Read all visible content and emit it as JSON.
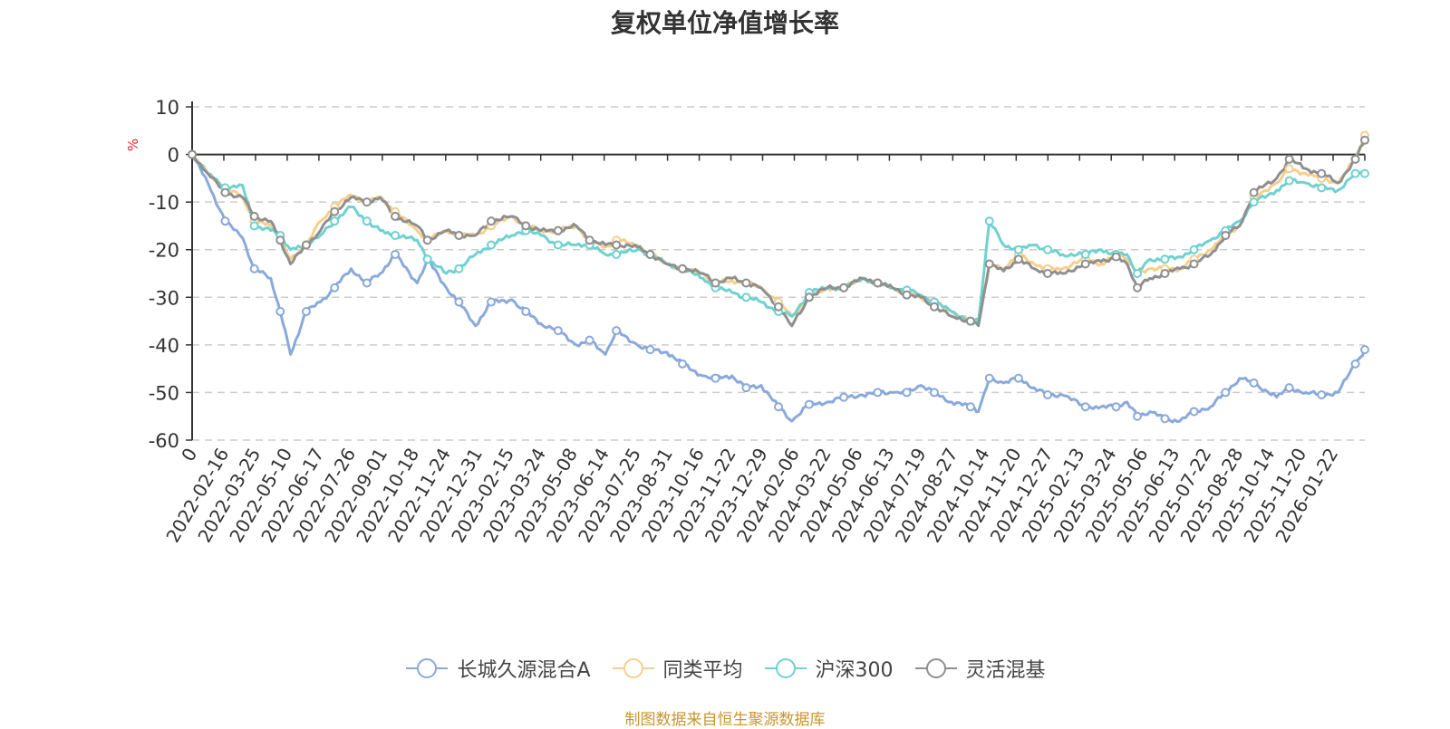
{
  "chart_data": {
    "type": "line",
    "title": "复权单位净值增长率",
    "ylabel": "%",
    "xlabel": "",
    "ylim": [
      -60,
      10
    ],
    "yticks": [
      10,
      0,
      -10,
      -20,
      -30,
      -40,
      -50,
      -60
    ],
    "grid": true,
    "legend_position": "bottom",
    "x_start_label": "0",
    "x_tick_labels": [
      "2022-02-16",
      "2022-03-25",
      "2022-05-10",
      "2022-06-17",
      "2022-07-26",
      "2022-09-01",
      "2022-10-18",
      "2022-11-24",
      "2022-12-31",
      "2023-02-15",
      "2023-03-24",
      "2023-05-08",
      "2023-06-14",
      "2023-07-25",
      "2023-08-31",
      "2023-10-16",
      "2023-11-22",
      "2023-12-29",
      "2024-02-06",
      "2024-03-22",
      "2024-05-06",
      "2024-06-13",
      "2024-07-19",
      "2024-08-27",
      "2024-10-14",
      "2024-11-20",
      "2024-12-27",
      "2025-02-13",
      "2025-03-24",
      "2025-05-06",
      "2025-06-13",
      "2025-07-22",
      "2025-08-28",
      "2025-10-14",
      "2025-11-20",
      "2026-01-22"
    ],
    "x": [
      "2022-01-05",
      "2022-01-25",
      "2022-02-16",
      "2022-03-10",
      "2022-03-25",
      "2022-04-15",
      "2022-04-27",
      "2022-05-10",
      "2022-05-30",
      "2022-06-17",
      "2022-07-05",
      "2022-07-26",
      "2022-08-15",
      "2022-09-01",
      "2022-09-20",
      "2022-10-18",
      "2022-10-31",
      "2022-11-24",
      "2022-12-10",
      "2022-12-31",
      "2023-01-20",
      "2023-02-15",
      "2023-03-05",
      "2023-03-24",
      "2023-04-15",
      "2023-05-08",
      "2023-05-25",
      "2023-06-14",
      "2023-06-28",
      "2023-07-25",
      "2023-08-10",
      "2023-08-31",
      "2023-09-20",
      "2023-10-16",
      "2023-11-01",
      "2023-11-22",
      "2023-12-10",
      "2023-12-29",
      "2024-01-20",
      "2024-02-06",
      "2024-02-28",
      "2024-03-22",
      "2024-04-12",
      "2024-05-06",
      "2024-05-25",
      "2024-06-13",
      "2024-07-01",
      "2024-07-19",
      "2024-08-05",
      "2024-08-27",
      "2024-09-20",
      "2024-09-30",
      "2024-10-14",
      "2024-11-01",
      "2024-11-20",
      "2024-12-10",
      "2024-12-27",
      "2025-01-15",
      "2025-02-13",
      "2025-03-05",
      "2025-03-24",
      "2025-04-07",
      "2025-04-20",
      "2025-05-06",
      "2025-05-25",
      "2025-06-13",
      "2025-07-01",
      "2025-07-22",
      "2025-08-10",
      "2025-08-28",
      "2025-09-15",
      "2025-10-14",
      "2025-10-30",
      "2025-11-20",
      "2025-12-10",
      "2025-12-31",
      "2026-01-22",
      "2026-02-03"
    ],
    "series": [
      {
        "name": "长城久源混合A",
        "color": "#8aa9db",
        "values": [
          0,
          -6,
          -14,
          -17.5,
          -24,
          -26,
          -33,
          -42,
          -33,
          -31,
          -28,
          -24,
          -27,
          -25,
          -21,
          -27,
          -22,
          -28,
          -31,
          -36,
          -31,
          -30.5,
          -33,
          -35.5,
          -37,
          -40,
          -39,
          -42,
          -37,
          -40,
          -41,
          -41.5,
          -44,
          -46.5,
          -47,
          -46.5,
          -49,
          -48.5,
          -53,
          -56,
          -52.5,
          -52,
          -51,
          -50.5,
          -50,
          -50,
          -50,
          -48.5,
          -50,
          -52,
          -53,
          -54,
          -47,
          -48,
          -47,
          -49,
          -50.5,
          -50.5,
          -53,
          -53,
          -53,
          -52,
          -55,
          -54,
          -55.5,
          -56,
          -54,
          -53,
          -50,
          -47,
          -48,
          -51,
          -49,
          -50,
          -50.5,
          -50,
          -44,
          -41
        ]
      },
      {
        "name": "同类平均",
        "color": "#f5cf8d",
        "values": [
          0,
          -4,
          -7,
          -9,
          -14,
          -15,
          -18,
          -22,
          -19,
          -14,
          -11,
          -8.5,
          -10,
          -9,
          -12,
          -16,
          -18,
          -16,
          -17,
          -17,
          -15,
          -13,
          -15,
          -16,
          -16,
          -15,
          -18,
          -19.5,
          -18,
          -19,
          -21,
          -23,
          -24,
          -25,
          -27,
          -26.5,
          -27,
          -28,
          -31,
          -34,
          -30,
          -28,
          -28,
          -26,
          -27,
          -28,
          -29,
          -30,
          -31,
          -33,
          -35,
          -35,
          -23,
          -24,
          -21,
          -23,
          -24,
          -24,
          -22,
          -23,
          -21,
          -22,
          -25,
          -24,
          -24,
          -24,
          -22,
          -20,
          -17,
          -15,
          -9,
          -6,
          -3,
          -4,
          -5,
          -6,
          -1,
          4
        ]
      },
      {
        "name": "沪深300",
        "color": "#6fd1d0",
        "values": [
          0,
          -4,
          -7,
          -6.5,
          -15,
          -16,
          -17,
          -20,
          -19,
          -17,
          -14,
          -11,
          -14,
          -16,
          -17,
          -18,
          -22,
          -25,
          -24,
          -21,
          -19,
          -17,
          -16,
          -17,
          -19,
          -19,
          -19,
          -21,
          -21,
          -20,
          -21,
          -23,
          -24,
          -26,
          -28,
          -29,
          -30,
          -31,
          -33,
          -34,
          -29,
          -28,
          -28,
          -26,
          -27,
          -28,
          -28.5,
          -29.5,
          -31,
          -33,
          -35,
          -35,
          -14,
          -19,
          -20,
          -19,
          -20,
          -21,
          -21,
          -20,
          -21,
          -21,
          -25,
          -22,
          -22,
          -21.5,
          -20,
          -18,
          -16,
          -14,
          -10,
          -7.5,
          -5.5,
          -6,
          -7,
          -7.5,
          -4,
          -4
        ]
      },
      {
        "name": "灵活混基",
        "color": "#8f8f8f",
        "values": [
          0,
          -4,
          -8,
          -9,
          -13,
          -14,
          -18,
          -23,
          -19,
          -16,
          -12,
          -9,
          -10,
          -9,
          -13,
          -15,
          -18,
          -16,
          -17,
          -17,
          -14,
          -13,
          -15,
          -16,
          -16,
          -15,
          -18,
          -19,
          -19,
          -19.5,
          -21,
          -23,
          -24,
          -25,
          -27,
          -26,
          -27,
          -28,
          -32,
          -36,
          -30,
          -28,
          -28,
          -26,
          -27,
          -28,
          -29.5,
          -30,
          -32,
          -34,
          -35,
          -36,
          -23,
          -24.5,
          -22,
          -24,
          -25,
          -25,
          -23,
          -22.5,
          -21.5,
          -23,
          -28,
          -26,
          -25,
          -24,
          -23,
          -21,
          -17,
          -15,
          -8,
          -5,
          -1,
          -3,
          -4,
          -6,
          -1,
          3
        ]
      }
    ]
  },
  "legend": {
    "items": [
      {
        "label": "长城久源混合A",
        "color": "#8aa9db"
      },
      {
        "label": "同类平均",
        "color": "#f5cf8d"
      },
      {
        "label": "沪深300",
        "color": "#6fd1d0"
      },
      {
        "label": "灵活混基",
        "color": "#8f8f8f"
      }
    ]
  },
  "source_note": "制图数据来自恒生聚源数据库"
}
